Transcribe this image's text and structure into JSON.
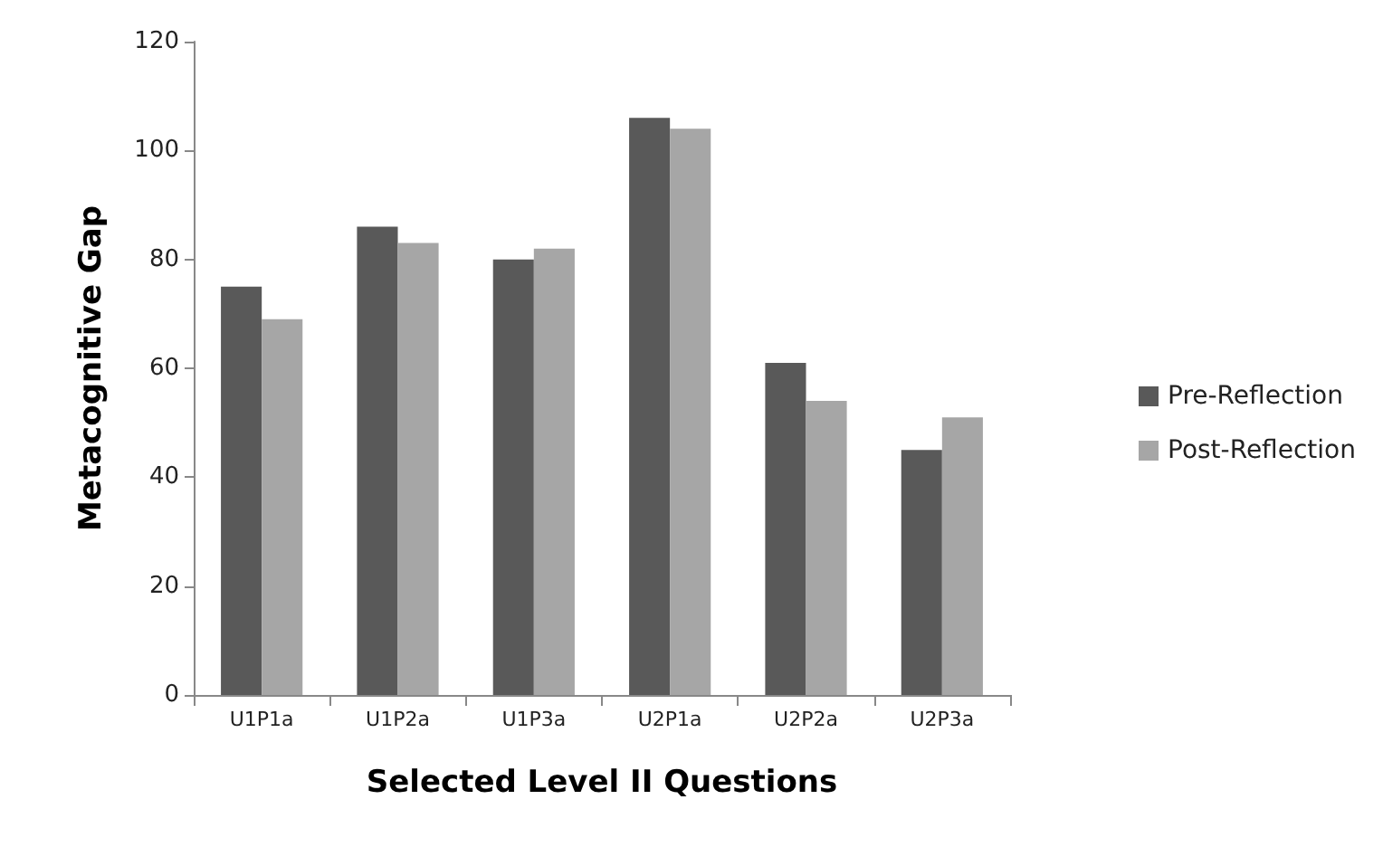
{
  "chart_data": {
    "type": "bar",
    "xlabel": "Selected Level II Questions",
    "ylabel": "Metacognitive Gap",
    "categories": [
      "U1P1a",
      "U1P2a",
      "U1P3a",
      "U2P1a",
      "U2P2a",
      "U2P3a"
    ],
    "series": [
      {
        "name": "Pre-Reflection",
        "color": "#595959",
        "values": [
          75,
          86,
          80,
          106,
          61,
          45
        ]
      },
      {
        "name": "Post-Reflection",
        "color": "#a6a6a6",
        "values": [
          69,
          83,
          82,
          104,
          54,
          51
        ]
      }
    ],
    "ylim": [
      0,
      120
    ],
    "yticks": [
      0,
      20,
      40,
      60,
      80,
      100,
      120
    ],
    "grid": false,
    "legend": "right"
  }
}
